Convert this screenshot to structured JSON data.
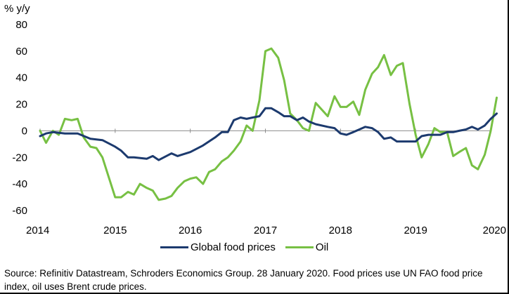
{
  "chart_data": {
    "type": "line",
    "ylabel": "% y/y",
    "ylim": [
      -60,
      80
    ],
    "yticks": [
      80,
      60,
      40,
      20,
      0,
      -20,
      -40,
      -60
    ],
    "xlim": [
      2014,
      2020
    ],
    "xticks": [
      "2014",
      "2015",
      "2016",
      "2017",
      "2018",
      "2019",
      "2020"
    ],
    "grid": false,
    "legend_position": "bottom",
    "series": [
      {
        "name": "Global food prices",
        "color": "#1c3a6e",
        "points": [
          [
            2014.0,
            -4
          ],
          [
            2014.08,
            -2
          ],
          [
            2014.17,
            -1
          ],
          [
            2014.33,
            -2
          ],
          [
            2014.5,
            -2
          ],
          [
            2014.67,
            -6
          ],
          [
            2014.83,
            -7
          ],
          [
            2015.0,
            -12
          ],
          [
            2015.08,
            -15
          ],
          [
            2015.17,
            -20
          ],
          [
            2015.25,
            -20
          ],
          [
            2015.42,
            -21
          ],
          [
            2015.5,
            -19
          ],
          [
            2015.58,
            -22
          ],
          [
            2015.75,
            -17
          ],
          [
            2015.83,
            -19
          ],
          [
            2016.0,
            -16
          ],
          [
            2016.17,
            -11
          ],
          [
            2016.33,
            -5
          ],
          [
            2016.42,
            -1
          ],
          [
            2016.5,
            -1
          ],
          [
            2016.58,
            8
          ],
          [
            2016.67,
            10
          ],
          [
            2016.75,
            9
          ],
          [
            2016.83,
            10
          ],
          [
            2016.92,
            11
          ],
          [
            2017.0,
            17
          ],
          [
            2017.08,
            17
          ],
          [
            2017.17,
            14
          ],
          [
            2017.25,
            11
          ],
          [
            2017.33,
            11
          ],
          [
            2017.42,
            8
          ],
          [
            2017.5,
            10
          ],
          [
            2017.58,
            7
          ],
          [
            2017.67,
            5
          ],
          [
            2017.83,
            3
          ],
          [
            2017.92,
            2
          ],
          [
            2018.0,
            -2
          ],
          [
            2018.08,
            -3
          ],
          [
            2018.17,
            -1
          ],
          [
            2018.33,
            3
          ],
          [
            2018.42,
            2
          ],
          [
            2018.5,
            -1
          ],
          [
            2018.58,
            -6
          ],
          [
            2018.67,
            -5
          ],
          [
            2018.75,
            -8
          ],
          [
            2018.83,
            -8
          ],
          [
            2019.0,
            -8
          ],
          [
            2019.08,
            -4
          ],
          [
            2019.17,
            -3
          ],
          [
            2019.33,
            -3
          ],
          [
            2019.42,
            -1
          ],
          [
            2019.5,
            -1
          ],
          [
            2019.58,
            0
          ],
          [
            2019.67,
            1
          ],
          [
            2019.75,
            3
          ],
          [
            2019.83,
            1
          ],
          [
            2019.92,
            4
          ],
          [
            2020.0,
            9
          ],
          [
            2020.08,
            13
          ]
        ]
      },
      {
        "name": "Oil",
        "color": "#77c043",
        "points": [
          [
            2014.0,
            0
          ],
          [
            2014.08,
            -9
          ],
          [
            2014.17,
            0
          ],
          [
            2014.25,
            -3
          ],
          [
            2014.33,
            9
          ],
          [
            2014.42,
            8
          ],
          [
            2014.5,
            9
          ],
          [
            2014.58,
            -5
          ],
          [
            2014.67,
            -12
          ],
          [
            2014.75,
            -13
          ],
          [
            2014.83,
            -20
          ],
          [
            2015.0,
            -50
          ],
          [
            2015.08,
            -50
          ],
          [
            2015.17,
            -46
          ],
          [
            2015.25,
            -48
          ],
          [
            2015.33,
            -40
          ],
          [
            2015.42,
            -43
          ],
          [
            2015.5,
            -45
          ],
          [
            2015.58,
            -52
          ],
          [
            2015.67,
            -51
          ],
          [
            2015.75,
            -49
          ],
          [
            2015.83,
            -43
          ],
          [
            2015.92,
            -38
          ],
          [
            2016.0,
            -36
          ],
          [
            2016.08,
            -35
          ],
          [
            2016.17,
            -40
          ],
          [
            2016.25,
            -31
          ],
          [
            2016.33,
            -29
          ],
          [
            2016.42,
            -23
          ],
          [
            2016.5,
            -20
          ],
          [
            2016.58,
            -15
          ],
          [
            2016.67,
            -8
          ],
          [
            2016.75,
            4
          ],
          [
            2016.83,
            0
          ],
          [
            2016.92,
            23
          ],
          [
            2017.0,
            60
          ],
          [
            2017.08,
            62
          ],
          [
            2017.17,
            55
          ],
          [
            2017.25,
            38
          ],
          [
            2017.33,
            13
          ],
          [
            2017.42,
            8
          ],
          [
            2017.5,
            2
          ],
          [
            2017.58,
            0
          ],
          [
            2017.67,
            21
          ],
          [
            2017.75,
            16
          ],
          [
            2017.83,
            11
          ],
          [
            2017.92,
            26
          ],
          [
            2018.0,
            18
          ],
          [
            2018.08,
            18
          ],
          [
            2018.17,
            22
          ],
          [
            2018.25,
            12
          ],
          [
            2018.33,
            31
          ],
          [
            2018.42,
            43
          ],
          [
            2018.5,
            48
          ],
          [
            2018.58,
            57
          ],
          [
            2018.67,
            42
          ],
          [
            2018.75,
            49
          ],
          [
            2018.83,
            51
          ],
          [
            2018.92,
            20
          ],
          [
            2019.0,
            -3
          ],
          [
            2019.08,
            -20
          ],
          [
            2019.17,
            -10
          ],
          [
            2019.25,
            2
          ],
          [
            2019.33,
            -1
          ],
          [
            2019.42,
            -1
          ],
          [
            2019.5,
            -19
          ],
          [
            2019.58,
            -16
          ],
          [
            2019.67,
            -13
          ],
          [
            2019.75,
            -26
          ],
          [
            2019.83,
            -29
          ],
          [
            2019.92,
            -18
          ],
          [
            2020.0,
            0
          ],
          [
            2020.08,
            25
          ]
        ]
      }
    ],
    "source": "Source: Refinitiv Datastream, Schroders Economics Group. 28 January 2020. Food prices use UN FAO food price index, oil uses Brent crude prices."
  }
}
